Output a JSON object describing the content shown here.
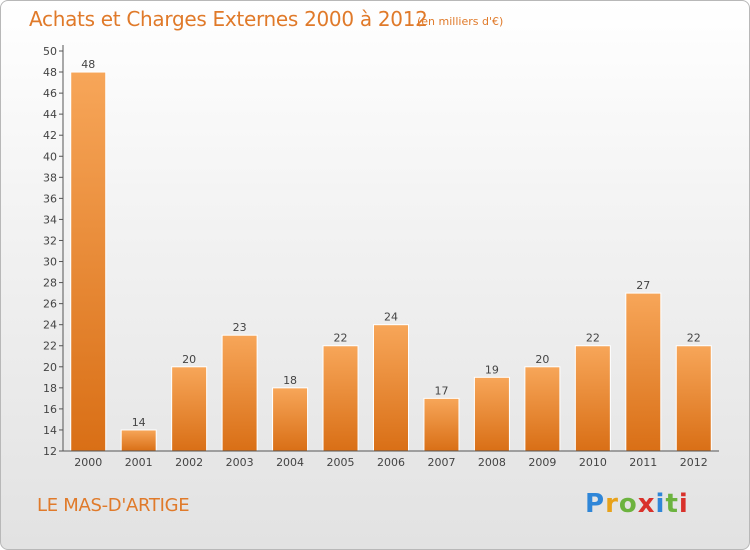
{
  "header": {
    "title": "Achats et Charges Externes 2000 à 2012",
    "subtitle": "(en milliers d'€)"
  },
  "footer": {
    "town": "LE MAS-D'ARTIGE",
    "logo_text": "Proxiti"
  },
  "colors": {
    "accent": "#e07a2a",
    "bar_top": "#f7a659",
    "bar_bottom": "#d96f16"
  },
  "chart_data": {
    "type": "bar",
    "categories": [
      "2000",
      "2001",
      "2002",
      "2003",
      "2004",
      "2005",
      "2006",
      "2007",
      "2008",
      "2009",
      "2010",
      "2011",
      "2012"
    ],
    "values": [
      48,
      14,
      20,
      23,
      18,
      22,
      24,
      17,
      19,
      20,
      22,
      27,
      22
    ],
    "title": "Achats et Charges Externes 2000 à 2012",
    "ylim": [
      12,
      50
    ],
    "yticks": [
      12,
      14,
      16,
      18,
      20,
      22,
      24,
      26,
      28,
      30,
      32,
      34,
      36,
      38,
      40,
      42,
      44,
      46,
      48,
      50
    ],
    "grid": false,
    "data_labels": true
  }
}
